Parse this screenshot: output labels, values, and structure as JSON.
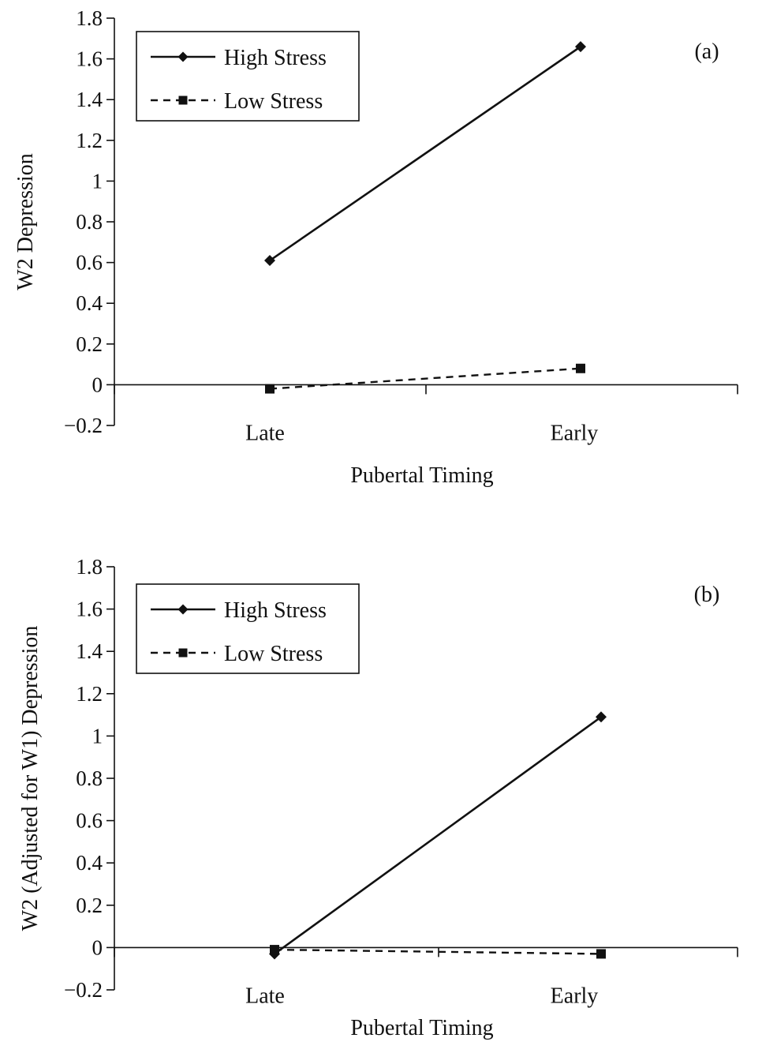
{
  "chart_data": [
    {
      "type": "line",
      "panel_label": "(a)",
      "categories": [
        "Late",
        "Early"
      ],
      "xlabel": "Pubertal Timing",
      "ylabel": "W2 Depression",
      "ylim": [
        -0.2,
        1.8
      ],
      "yticks": [
        "1.8",
        "1.6",
        "1.4",
        "1.2",
        "1",
        "0.8",
        "0.6",
        "0.4",
        "0.2",
        "0",
        "−0.2"
      ],
      "ytick_values": [
        1.8,
        1.6,
        1.4,
        1.2,
        1.0,
        0.8,
        0.6,
        0.4,
        0.2,
        0.0,
        -0.2
      ],
      "grid": false,
      "legend_position": "top-left",
      "series": [
        {
          "name": "High Stress",
          "values": [
            0.61,
            1.66
          ],
          "line": "solid",
          "marker": "diamond",
          "color": "#111111"
        },
        {
          "name": "Low Stress",
          "values": [
            -0.02,
            0.08
          ],
          "line": "dashed",
          "marker": "square",
          "color": "#111111"
        }
      ]
    },
    {
      "type": "line",
      "panel_label": "(b)",
      "categories": [
        "Late",
        "Early"
      ],
      "xlabel": "Pubertal Timing",
      "ylabel": "W2 (Adjusted for W1) Depression",
      "ylim": [
        -0.2,
        1.8
      ],
      "yticks": [
        "1.8",
        "1.6",
        "1.4",
        "1.2",
        "1",
        "0.8",
        "0.6",
        "0.4",
        "0.2",
        "0",
        "−0.2"
      ],
      "ytick_values": [
        1.8,
        1.6,
        1.4,
        1.2,
        1.0,
        0.8,
        0.6,
        0.4,
        0.2,
        0.0,
        -0.2
      ],
      "grid": false,
      "legend_position": "top-left",
      "series": [
        {
          "name": "High Stress",
          "values": [
            -0.03,
            1.09
          ],
          "line": "solid",
          "marker": "diamond",
          "color": "#111111"
        },
        {
          "name": "Low Stress",
          "values": [
            -0.01,
            -0.03
          ],
          "line": "dashed",
          "marker": "square",
          "color": "#111111"
        }
      ]
    }
  ]
}
